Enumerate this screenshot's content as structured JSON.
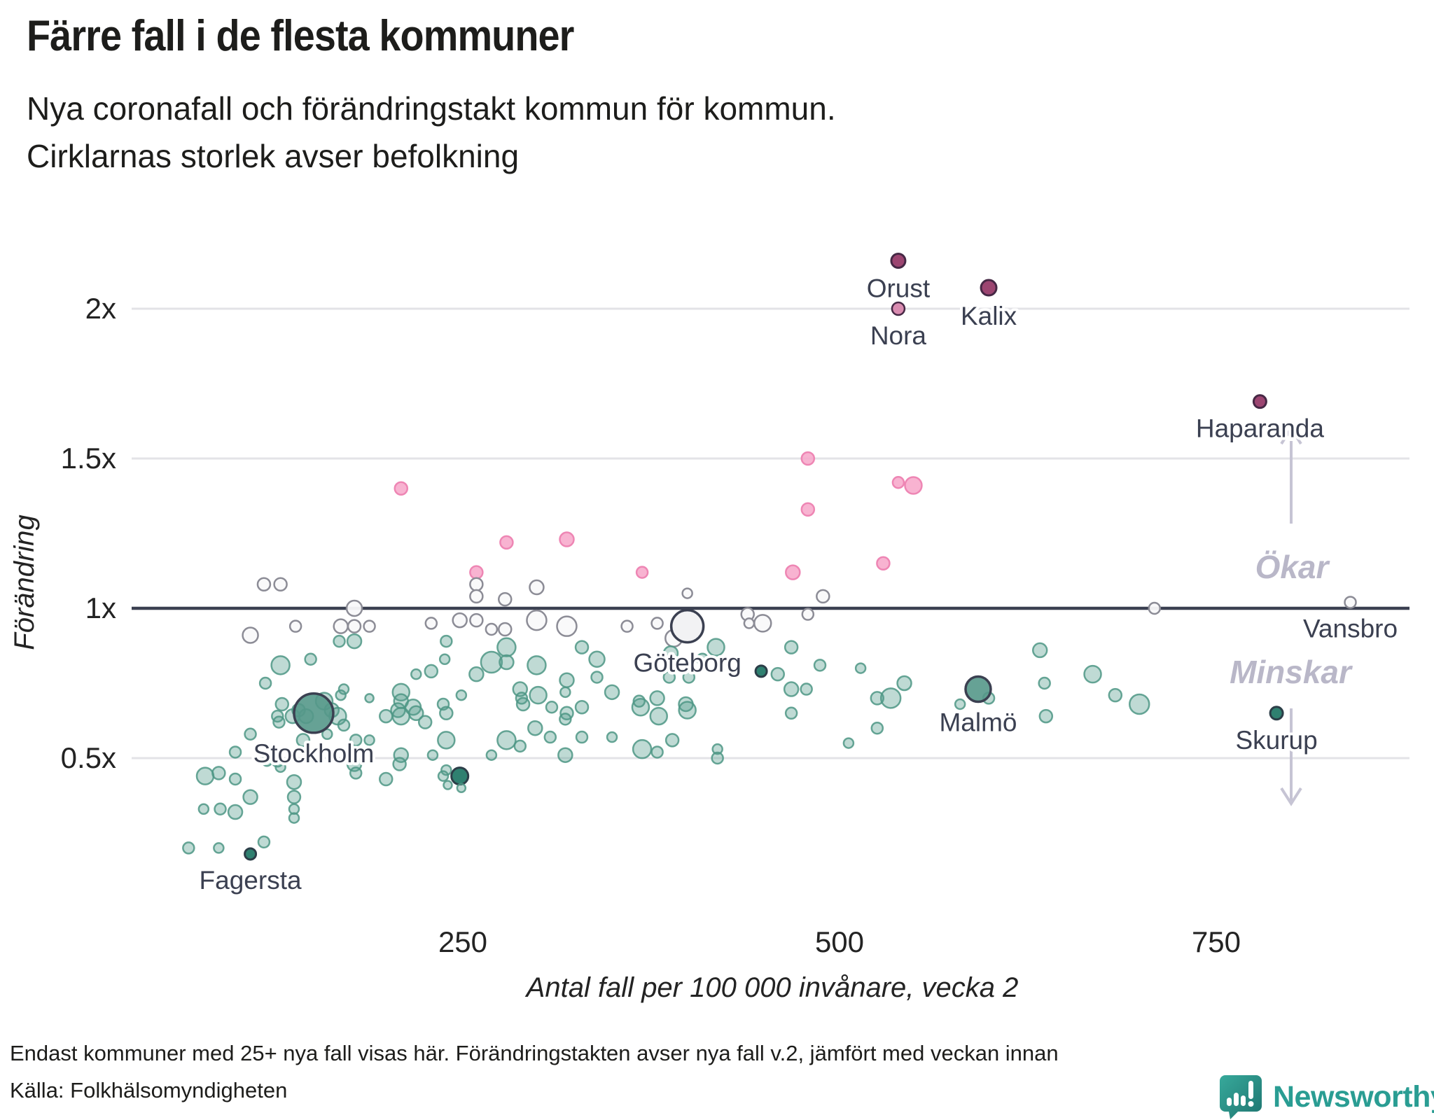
{
  "header": {
    "title": "Färre fall i de flesta kommuner",
    "subtitle1": "Nya coronafall och förändringstakt kommun för kommun.",
    "subtitle2": "Cirklarnas storlek avser befolkning"
  },
  "footer": {
    "note": "Endast kommuner med 25+ nya fall visas här. Förändringstakten avser nya fall v.2, jämfört med veckan innan",
    "source": "Källa: Folkhälsomyndigheten",
    "brand": "Newsworthy"
  },
  "palette": {
    "teal_fill": "#569E8D",
    "teal_stroke": "#4E9685",
    "teal_solid_fill": "#559889",
    "teal_dark_fill": "#2F8070",
    "teal_dark_stroke": "#2C3E48",
    "pink_fill": "#F7A6C9",
    "pink_stroke": "#EE86B4",
    "maroon_fill": "#9C4571",
    "maroon_light_fill": "#D98BB0",
    "maroon_stroke": "#462845",
    "neutral_fill": "#F9F9FA",
    "neutral_dark_fill": "#F2F2F4",
    "neutral_stroke": "#8C8C96",
    "dark": "#3B4051",
    "grid": "#E3E3E7",
    "annotation": "#B9B7C8",
    "arrow": "#C6C4D4",
    "brand": "#2A9D93",
    "text": "#1D1D1B"
  },
  "chart_data": {
    "type": "scatter",
    "title": "Färre fall i de flesta kommuner",
    "xlabel": "Antal fall per 100 000 invånare, vecka 2",
    "ylabel": "Förändring",
    "x_ticks": [
      250,
      500,
      750
    ],
    "y_ticks": [
      {
        "v": 2,
        "label": "2x"
      },
      {
        "v": 1.5,
        "label": "1.5x"
      },
      {
        "v": 1,
        "label": "1x"
      },
      {
        "v": 0.5,
        "label": "0.5x"
      }
    ],
    "baseline_value": 1,
    "x_range": [
      30,
      880
    ],
    "y_range": [
      0.08,
      2.3
    ],
    "grid": true,
    "legend_position": "none",
    "size_encoding": "befolkning",
    "annotations": [
      {
        "text": "Ökar",
        "direction": "up"
      },
      {
        "text": "Minskar",
        "direction": "down"
      }
    ],
    "points_format": [
      "cases_per_100k",
      "change_multiplier",
      "radius_px",
      "color_class",
      "label"
    ],
    "points": [
      [
        539,
        2.16,
        10,
        "maroon",
        "Orust"
      ],
      [
        599,
        2.07,
        11,
        "maroon",
        "Kalix"
      ],
      [
        539,
        2.0,
        9,
        "maroon-light",
        "Nora"
      ],
      [
        779,
        1.69,
        9,
        "maroon",
        "Haparanda"
      ],
      [
        839,
        1.02,
        8,
        "white",
        "Vansbro"
      ],
      [
        790,
        0.65,
        9,
        "teal-dark",
        "Skurup"
      ],
      [
        592,
        0.73,
        18,
        "teal-solid",
        "Malmö"
      ],
      [
        399,
        0.94,
        23,
        "white-dark",
        "Göteborg"
      ],
      [
        151,
        0.65,
        28,
        "teal-solid",
        "Stockholm"
      ],
      [
        109,
        0.18,
        8,
        "teal-dark",
        "Fagersta"
      ],
      [
        209,
        1.4,
        9,
        "pink"
      ],
      [
        279,
        1.22,
        9,
        "pink"
      ],
      [
        319,
        1.23,
        10,
        "pink"
      ],
      [
        259,
        1.12,
        9,
        "pink"
      ],
      [
        369,
        1.12,
        8,
        "pink"
      ],
      [
        479,
        1.5,
        9,
        "pink"
      ],
      [
        479,
        1.33,
        9,
        "pink"
      ],
      [
        539,
        1.42,
        8,
        "pink"
      ],
      [
        549,
        1.41,
        12,
        "pink"
      ],
      [
        529,
        1.15,
        9,
        "pink"
      ],
      [
        469,
        1.12,
        10,
        "pink"
      ],
      [
        118,
        1.08,
        9,
        "white"
      ],
      [
        129,
        1.08,
        9,
        "white"
      ],
      [
        178,
        1.0,
        11,
        "white"
      ],
      [
        109,
        0.91,
        11,
        "white"
      ],
      [
        169,
        0.94,
        10,
        "white"
      ],
      [
        178,
        0.94,
        9,
        "white"
      ],
      [
        188,
        0.94,
        8,
        "white"
      ],
      [
        139,
        0.94,
        8,
        "white"
      ],
      [
        229,
        0.95,
        8,
        "white"
      ],
      [
        248,
        0.96,
        10,
        "white"
      ],
      [
        259,
        1.08,
        9,
        "white"
      ],
      [
        259,
        1.04,
        9,
        "white"
      ],
      [
        259,
        0.96,
        9,
        "white"
      ],
      [
        269,
        0.93,
        8,
        "white"
      ],
      [
        278,
        1.03,
        9,
        "white"
      ],
      [
        278,
        0.93,
        9,
        "white"
      ],
      [
        299,
        1.07,
        10,
        "white"
      ],
      [
        299,
        0.96,
        14,
        "white"
      ],
      [
        319,
        0.94,
        14,
        "white"
      ],
      [
        359,
        0.94,
        8,
        "white"
      ],
      [
        379,
        0.95,
        8,
        "white"
      ],
      [
        390,
        0.9,
        12,
        "white"
      ],
      [
        399,
        1.05,
        7,
        "white"
      ],
      [
        439,
        0.98,
        9,
        "white"
      ],
      [
        440,
        0.95,
        7,
        "white"
      ],
      [
        449,
        0.95,
        12,
        "white"
      ],
      [
        489,
        1.04,
        9,
        "white"
      ],
      [
        479,
        0.98,
        8,
        "white"
      ],
      [
        709,
        1.0,
        8,
        "white"
      ],
      [
        168,
        0.89,
        8,
        "teal"
      ],
      [
        178,
        0.89,
        10,
        "teal"
      ],
      [
        239,
        0.89,
        8,
        "teal"
      ],
      [
        238,
        0.83,
        7,
        "teal"
      ],
      [
        129,
        0.81,
        13,
        "teal"
      ],
      [
        149,
        0.83,
        8,
        "teal"
      ],
      [
        219,
        0.78,
        7,
        "teal"
      ],
      [
        229,
        0.79,
        9,
        "teal"
      ],
      [
        119,
        0.75,
        8,
        "teal"
      ],
      [
        209,
        0.72,
        12,
        "teal"
      ],
      [
        209,
        0.69,
        10,
        "teal"
      ],
      [
        130,
        0.68,
        9,
        "teal"
      ],
      [
        127,
        0.64,
        8,
        "teal"
      ],
      [
        128,
        0.62,
        8,
        "teal"
      ],
      [
        137,
        0.64,
        10,
        "teal"
      ],
      [
        141,
        0.66,
        9,
        "teal"
      ],
      [
        146,
        0.64,
        10,
        "teal"
      ],
      [
        158,
        0.69,
        12,
        "teal"
      ],
      [
        163,
        0.66,
        10,
        "teal"
      ],
      [
        167,
        0.64,
        12,
        "teal"
      ],
      [
        171,
        0.73,
        7,
        "teal"
      ],
      [
        169,
        0.71,
        7,
        "teal"
      ],
      [
        188,
        0.7,
        6,
        "teal"
      ],
      [
        171,
        0.61,
        8,
        "teal"
      ],
      [
        160,
        0.58,
        7,
        "teal"
      ],
      [
        144,
        0.56,
        9,
        "teal"
      ],
      [
        109,
        0.58,
        8,
        "teal"
      ],
      [
        99,
        0.52,
        8,
        "teal"
      ],
      [
        120,
        0.49,
        7,
        "teal"
      ],
      [
        127,
        0.49,
        8,
        "teal"
      ],
      [
        129,
        0.47,
        7,
        "teal"
      ],
      [
        179,
        0.56,
        8,
        "teal"
      ],
      [
        188,
        0.56,
        7,
        "teal"
      ],
      [
        178,
        0.48,
        10,
        "teal"
      ],
      [
        179,
        0.45,
        8,
        "teal"
      ],
      [
        199,
        0.64,
        9,
        "teal"
      ],
      [
        207,
        0.66,
        10,
        "teal"
      ],
      [
        209,
        0.64,
        12,
        "teal"
      ],
      [
        217,
        0.67,
        11,
        "teal"
      ],
      [
        219,
        0.65,
        10,
        "teal"
      ],
      [
        225,
        0.62,
        9,
        "teal"
      ],
      [
        237,
        0.68,
        8,
        "teal"
      ],
      [
        239,
        0.65,
        9,
        "teal"
      ],
      [
        239,
        0.56,
        12,
        "teal"
      ],
      [
        230,
        0.51,
        7,
        "teal"
      ],
      [
        209,
        0.51,
        10,
        "teal"
      ],
      [
        208,
        0.48,
        9,
        "teal"
      ],
      [
        199,
        0.43,
        9,
        "teal"
      ],
      [
        239,
        0.46,
        7,
        "teal"
      ],
      [
        237,
        0.44,
        7,
        "teal"
      ],
      [
        248,
        0.44,
        12,
        "teal-dark"
      ],
      [
        249,
        0.4,
        6,
        "teal"
      ],
      [
        79,
        0.44,
        12,
        "teal"
      ],
      [
        88,
        0.45,
        9,
        "teal"
      ],
      [
        99,
        0.43,
        8,
        "teal"
      ],
      [
        109,
        0.37,
        10,
        "teal"
      ],
      [
        78,
        0.33,
        7,
        "teal"
      ],
      [
        89,
        0.33,
        8,
        "teal"
      ],
      [
        99,
        0.32,
        10,
        "teal"
      ],
      [
        138,
        0.42,
        10,
        "teal"
      ],
      [
        138,
        0.37,
        9,
        "teal"
      ],
      [
        138,
        0.33,
        7,
        "teal"
      ],
      [
        138,
        0.3,
        7,
        "teal"
      ],
      [
        68,
        0.2,
        8,
        "teal"
      ],
      [
        88,
        0.2,
        7,
        "teal"
      ],
      [
        118,
        0.22,
        8,
        "teal"
      ],
      [
        240,
        0.41,
        6,
        "teal"
      ],
      [
        279,
        0.87,
        13,
        "teal"
      ],
      [
        269,
        0.82,
        15,
        "teal"
      ],
      [
        279,
        0.82,
        10,
        "teal"
      ],
      [
        259,
        0.78,
        10,
        "teal"
      ],
      [
        299,
        0.81,
        13,
        "teal"
      ],
      [
        329,
        0.87,
        9,
        "teal"
      ],
      [
        339,
        0.83,
        11,
        "teal"
      ],
      [
        339,
        0.77,
        8,
        "teal"
      ],
      [
        319,
        0.76,
        10,
        "teal"
      ],
      [
        318,
        0.72,
        7,
        "teal"
      ],
      [
        349,
        0.72,
        10,
        "teal"
      ],
      [
        249,
        0.71,
        7,
        "teal"
      ],
      [
        288,
        0.73,
        10,
        "teal"
      ],
      [
        289,
        0.7,
        8,
        "teal"
      ],
      [
        290,
        0.68,
        9,
        "teal"
      ],
      [
        300,
        0.71,
        12,
        "teal"
      ],
      [
        309,
        0.67,
        8,
        "teal"
      ],
      [
        319,
        0.65,
        9,
        "teal"
      ],
      [
        318,
        0.63,
        8,
        "teal"
      ],
      [
        329,
        0.67,
        9,
        "teal"
      ],
      [
        298,
        0.6,
        10,
        "teal"
      ],
      [
        308,
        0.57,
        8,
        "teal"
      ],
      [
        279,
        0.56,
        13,
        "teal"
      ],
      [
        288,
        0.54,
        8,
        "teal"
      ],
      [
        269,
        0.51,
        7,
        "teal"
      ],
      [
        318,
        0.51,
        10,
        "teal"
      ],
      [
        329,
        0.57,
        8,
        "teal"
      ],
      [
        349,
        0.57,
        7,
        "teal"
      ],
      [
        369,
        0.53,
        13,
        "teal"
      ],
      [
        379,
        0.52,
        8,
        "teal"
      ],
      [
        368,
        0.67,
        12,
        "teal"
      ],
      [
        367,
        0.69,
        8,
        "teal"
      ],
      [
        379,
        0.7,
        10,
        "teal"
      ],
      [
        380,
        0.64,
        12,
        "teal"
      ],
      [
        389,
        0.56,
        9,
        "teal"
      ],
      [
        398,
        0.68,
        10,
        "teal"
      ],
      [
        399,
        0.66,
        12,
        "teal"
      ],
      [
        418,
        0.87,
        12,
        "teal"
      ],
      [
        388,
        0.85,
        10,
        "teal"
      ],
      [
        387,
        0.77,
        8,
        "teal"
      ],
      [
        400,
        0.77,
        8,
        "teal"
      ],
      [
        409,
        0.83,
        8,
        "teal"
      ],
      [
        448,
        0.79,
        8,
        "teal-dark"
      ],
      [
        459,
        0.78,
        9,
        "teal"
      ],
      [
        419,
        0.53,
        7,
        "teal"
      ],
      [
        419,
        0.5,
        8,
        "teal"
      ],
      [
        468,
        0.87,
        9,
        "teal"
      ],
      [
        487,
        0.81,
        8,
        "teal"
      ],
      [
        468,
        0.73,
        10,
        "teal"
      ],
      [
        478,
        0.73,
        8,
        "teal"
      ],
      [
        468,
        0.65,
        8,
        "teal"
      ],
      [
        514,
        0.8,
        7,
        "teal"
      ],
      [
        525,
        0.7,
        9,
        "teal"
      ],
      [
        534,
        0.7,
        14,
        "teal"
      ],
      [
        543,
        0.75,
        10,
        "teal"
      ],
      [
        525,
        0.6,
        8,
        "teal"
      ],
      [
        506,
        0.55,
        7,
        "teal"
      ],
      [
        580,
        0.68,
        7,
        "teal"
      ],
      [
        599,
        0.7,
        8,
        "teal"
      ],
      [
        633,
        0.86,
        10,
        "teal"
      ],
      [
        636,
        0.75,
        8,
        "teal"
      ],
      [
        637,
        0.64,
        9,
        "teal"
      ],
      [
        668,
        0.78,
        12,
        "teal"
      ],
      [
        683,
        0.71,
        9,
        "teal"
      ],
      [
        699,
        0.68,
        14,
        "teal"
      ]
    ]
  }
}
